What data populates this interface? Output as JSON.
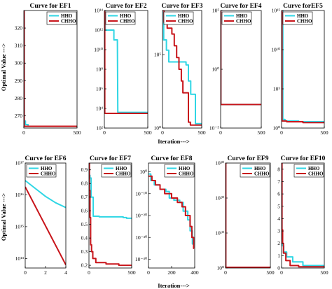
{
  "figure": {
    "ylabel": "Optimal Value --->",
    "xlabel_top": "Iteration--->",
    "xlabel_bottom": "Iteration--->"
  },
  "colors": {
    "HHO": "#2fd6e4",
    "CHHO": "#c8141a"
  },
  "chart_data": [
    {
      "type": "line",
      "title": "Curve for EF1",
      "yscale": "linear",
      "xlim": [
        0,
        500
      ],
      "ylim": [
        263,
        330
      ],
      "xticks": [
        0,
        500
      ],
      "xtick_labels": [
        "0",
        "500"
      ],
      "yticks": [
        270,
        280,
        290,
        300,
        310,
        320
      ],
      "ytick_labels": [
        "270",
        "280",
        "290",
        "300",
        "310",
        "320"
      ],
      "legend": [
        "HHO",
        "CHHO"
      ],
      "legend_position": "top-right",
      "series": [
        {
          "name": "HHO",
          "x": [
            0,
            5,
            5,
            15,
            15,
            40,
            40,
            500
          ],
          "y": [
            330,
            330,
            267,
            267,
            265,
            265,
            264,
            264
          ]
        },
        {
          "name": "CHHO",
          "x": [
            0,
            3,
            3,
            500
          ],
          "y": [
            330,
            330,
            264,
            264
          ]
        }
      ]
    },
    {
      "type": "line",
      "title": "Curve for EF2",
      "yscale": "log",
      "xlim": [
        0,
        500
      ],
      "ylim": [
        2,
        14
      ],
      "xticks": [
        0,
        500
      ],
      "xtick_labels": [
        "0",
        "500"
      ],
      "yticks": [
        2,
        4,
        6,
        8,
        10,
        12,
        14
      ],
      "ytick_labels": [
        "10²",
        "10⁴",
        "10⁶",
        "10⁸",
        "10¹⁰",
        "10¹²",
        "10¹⁴"
      ],
      "legend": [
        "HHO",
        "CHHO"
      ],
      "legend_position": "top-left",
      "series": [
        {
          "name": "HHO",
          "x": [
            0,
            10,
            10,
            110,
            110,
            150,
            155,
            500
          ],
          "y": [
            14,
            14,
            12,
            12,
            11,
            11,
            3.6,
            3.6
          ]
        },
        {
          "name": "CHHO",
          "x": [
            0,
            5,
            5,
            500
          ],
          "y": [
            14,
            14,
            3.5,
            3.5
          ]
        }
      ]
    },
    {
      "type": "line",
      "title": "Curve for EF3",
      "yscale": "log",
      "xlim": [
        0,
        500
      ],
      "ylim": [
        0,
        8
      ],
      "xticks": [
        0,
        500
      ],
      "xtick_labels": [
        "0",
        "500"
      ],
      "yticks": [
        0,
        5
      ],
      "ytick_labels": [
        "10⁰",
        "10⁵"
      ],
      "legend": [
        "HHO",
        "CHHO"
      ],
      "legend_position": "top-left",
      "series": [
        {
          "name": "HHO",
          "x": [
            0,
            15,
            15,
            50,
            50,
            80,
            80,
            300,
            300,
            330,
            330,
            360,
            360,
            420,
            420,
            500
          ],
          "y": [
            8,
            8,
            6,
            6,
            5.3,
            5.3,
            4.5,
            4.5,
            4.3,
            4.3,
            3.2,
            3.2,
            2.3,
            2.3,
            0.3,
            0.3
          ]
        },
        {
          "name": "CHHO",
          "x": [
            0,
            20,
            20,
            60,
            60,
            120,
            120,
            150,
            150,
            180,
            180,
            210,
            210,
            240,
            240,
            260,
            260,
            330,
            330,
            355,
            355,
            500
          ],
          "y": [
            8,
            8,
            7.2,
            7.2,
            6.8,
            6.8,
            6.4,
            6.4,
            5.6,
            5.6,
            4.8,
            4.8,
            4.0,
            4.0,
            3.2,
            3.2,
            2.4,
            2.4,
            0.4,
            0.4,
            0.2,
            0.2
          ]
        }
      ]
    },
    {
      "type": "line",
      "title": "Curve for EF4",
      "yscale": "log",
      "xlim": [
        0,
        500
      ],
      "ylim": [
        -5,
        5
      ],
      "xticks": [
        0,
        500
      ],
      "xtick_labels": [
        "0",
        "500"
      ],
      "yticks": [
        -5,
        0,
        5
      ],
      "ytick_labels": [
        "10⁻⁵",
        "10⁰",
        "10⁵"
      ],
      "legend": [
        "HHO",
        "CHHO"
      ],
      "legend_position": "top-left",
      "series": [
        {
          "name": "HHO",
          "x": [
            0,
            4,
            4,
            500
          ],
          "y": [
            5,
            5,
            -3,
            -3
          ]
        },
        {
          "name": "CHHO",
          "x": [
            0,
            3,
            3,
            500
          ],
          "y": [
            5,
            5,
            -3,
            -3
          ]
        }
      ]
    },
    {
      "type": "line",
      "title": "Curve forEF5",
      "yscale": "log",
      "xlim": [
        0,
        500
      ],
      "ylim": [
        0,
        15
      ],
      "xticks": [
        0,
        500
      ],
      "xtick_labels": [
        "0",
        "500"
      ],
      "yticks": [
        0,
        5,
        10,
        15
      ],
      "ytick_labels": [
        "10⁰",
        "10⁵",
        "10¹⁰",
        "10¹⁵"
      ],
      "legend": [
        "HHO",
        "CHHO"
      ],
      "legend_position": "top-left",
      "series": [
        {
          "name": "HHO",
          "x": [
            0,
            15,
            15,
            40,
            40,
            200,
            200,
            500
          ],
          "y": [
            15,
            15,
            1.1,
            1.1,
            0.9,
            0.9,
            0.8,
            0.8
          ]
        },
        {
          "name": "CHHO",
          "x": [
            0,
            5,
            5,
            60,
            60,
            250,
            250,
            500
          ],
          "y": [
            15,
            15,
            0.9,
            0.9,
            0.8,
            0.8,
            0.7,
            0.7
          ]
        }
      ]
    },
    {
      "type": "line",
      "title": "Curve for EF6",
      "yscale": "log",
      "xlim": [
        0,
        4
      ],
      "ylim": [
        13.7,
        17
      ],
      "xticks": [
        0,
        2,
        4
      ],
      "xtick_labels": [
        "0",
        "2",
        "4"
      ],
      "yticks": [
        14,
        15,
        16,
        17
      ],
      "ytick_labels": [
        "10¹⁴",
        "10¹⁵",
        "10¹⁶",
        "10¹⁷"
      ],
      "legend": [
        "HHO",
        "CHHO"
      ],
      "legend_position": "top-left",
      "series": [
        {
          "name": "HHO",
          "x": [
            0,
            1,
            2,
            3,
            4
          ],
          "y": [
            16.45,
            16.2,
            15.95,
            15.75,
            15.6
          ]
        },
        {
          "name": "CHHO",
          "x": [
            0,
            4
          ],
          "y": [
            16.25,
            13.8
          ]
        }
      ]
    },
    {
      "type": "line",
      "title": "Curve for EF7",
      "yscale": "linear",
      "xlim": [
        0,
        500
      ],
      "ylim": [
        0.18,
        0.95
      ],
      "xticks": [
        0,
        500
      ],
      "xtick_labels": [
        "0",
        "500"
      ],
      "yticks": [
        0.2,
        0.3,
        0.4,
        0.5,
        0.6,
        0.7,
        0.8,
        0.9
      ],
      "ytick_labels": [
        "0.2",
        "0.3",
        "0.4",
        "0.5",
        "0.6",
        "0.7",
        "0.8",
        "0.9"
      ],
      "legend": [
        "HHO",
        "CHHO"
      ],
      "legend_position": "top-right",
      "series": [
        {
          "name": "HHO",
          "x": [
            0,
            5,
            5,
            12,
            12,
            25,
            25,
            50,
            50,
            120,
            120,
            400,
            400,
            440,
            440,
            500
          ],
          "y": [
            0.95,
            0.95,
            0.86,
            0.86,
            0.84,
            0.84,
            0.7,
            0.7,
            0.56,
            0.56,
            0.555,
            0.555,
            0.55,
            0.55,
            0.545,
            0.545
          ]
        },
        {
          "name": "CHHO",
          "x": [
            0,
            5,
            5,
            12,
            12,
            20,
            20,
            30,
            30,
            45,
            45,
            80,
            80,
            200,
            200,
            350,
            350,
            500
          ],
          "y": [
            0.95,
            0.95,
            0.75,
            0.75,
            0.55,
            0.55,
            0.35,
            0.35,
            0.3,
            0.3,
            0.25,
            0.25,
            0.22,
            0.22,
            0.21,
            0.21,
            0.2,
            0.2
          ]
        }
      ]
    },
    {
      "type": "line",
      "title": "Curve for EF8",
      "yscale": "log",
      "xlim": [
        0,
        400
      ],
      "ylim": [
        -44,
        4
      ],
      "xticks": [
        0,
        200,
        400
      ],
      "xtick_labels": [
        "0",
        "200",
        "400"
      ],
      "yticks": [
        -40,
        -30,
        -20,
        -10,
        0
      ],
      "ytick_labels": [
        "10⁻⁴⁰",
        "10⁻³⁰",
        "10⁻²⁰",
        "10⁻¹⁰",
        "10⁰"
      ],
      "legend": [
        "HHO",
        "CHHO"
      ],
      "legend_position": "top-right",
      "series": [
        {
          "name": "HHO",
          "x": [
            0,
            20,
            20,
            50,
            50,
            100,
            100,
            150,
            150,
            180,
            180,
            220,
            220,
            270,
            270,
            300,
            300,
            340,
            340,
            360,
            360,
            380,
            380,
            395
          ],
          "y": [
            -1,
            -1,
            -4,
            -4,
            -6,
            -6,
            -8,
            -8,
            -9,
            -9,
            -12,
            -12,
            -13,
            -13,
            -14,
            -14,
            -18,
            -18,
            -22,
            -22,
            -27,
            -27,
            -33,
            -33
          ]
        },
        {
          "name": "CHHO",
          "x": [
            0,
            30,
            30,
            60,
            60,
            100,
            100,
            140,
            140,
            200,
            200,
            250,
            250,
            290,
            290,
            320,
            320,
            360,
            360,
            375,
            375,
            390,
            390,
            395
          ],
          "y": [
            -2,
            -2,
            -4,
            -4,
            -6,
            -6,
            -8,
            -8,
            -10,
            -10,
            -12,
            -12,
            -14,
            -14,
            -16,
            -16,
            -20,
            -20,
            -25,
            -25,
            -30,
            -30,
            -35,
            -35
          ]
        }
      ]
    },
    {
      "type": "line",
      "title": "Curve for EF9",
      "yscale": "log",
      "xlim": [
        0,
        500
      ],
      "ylim": [
        0,
        30
      ],
      "xticks": [
        0,
        500
      ],
      "xtick_labels": [
        "0",
        "500"
      ],
      "yticks": [
        0,
        10,
        20,
        30
      ],
      "ytick_labels": [
        "10⁰",
        "10¹⁰",
        "10²⁰",
        "10³⁰"
      ],
      "legend": [
        "HHO",
        "CHHO"
      ],
      "legend_position": "top-right",
      "series": [
        {
          "name": "HHO",
          "x": [
            0,
            4,
            4,
            500
          ],
          "y": [
            30,
            30,
            0.2,
            0.2
          ]
        },
        {
          "name": "CHHO",
          "x": [
            0,
            3,
            3,
            500
          ],
          "y": [
            30,
            30,
            0.2,
            0.2
          ]
        }
      ]
    },
    {
      "type": "line",
      "title": "Curve for EF10",
      "yscale": "linear",
      "xlim": [
        0,
        500
      ],
      "ylim": [
        0,
        8.5
      ],
      "xticks": [
        0,
        500
      ],
      "xtick_labels": [
        "0",
        "500"
      ],
      "yticks": [
        0,
        1,
        2,
        3,
        4,
        5,
        6,
        7,
        8
      ],
      "ytick_labels": [
        "0",
        "1",
        "2",
        "3",
        "4",
        "5",
        "6",
        "7",
        "8"
      ],
      "legend": [
        "HHO",
        "CHHO"
      ],
      "legend_position": "top-right",
      "series": [
        {
          "name": "HHO",
          "x": [
            0,
            5,
            5,
            12,
            12,
            25,
            25,
            60,
            60,
            130,
            130,
            250,
            250,
            500
          ],
          "y": [
            8.5,
            8.5,
            2.4,
            2.4,
            1.8,
            1.8,
            1.3,
            1.3,
            0.9,
            0.9,
            0.5,
            0.5,
            0.2,
            0.2
          ]
        },
        {
          "name": "CHHO",
          "x": [
            0,
            5,
            5,
            12,
            12,
            22,
            22,
            50,
            50,
            100,
            100,
            200,
            200,
            500
          ],
          "y": [
            8.5,
            8.5,
            3.1,
            3.1,
            2.0,
            2.0,
            1.2,
            1.2,
            0.6,
            0.6,
            0.2,
            0.2,
            0.1,
            0.1
          ]
        }
      ]
    }
  ]
}
